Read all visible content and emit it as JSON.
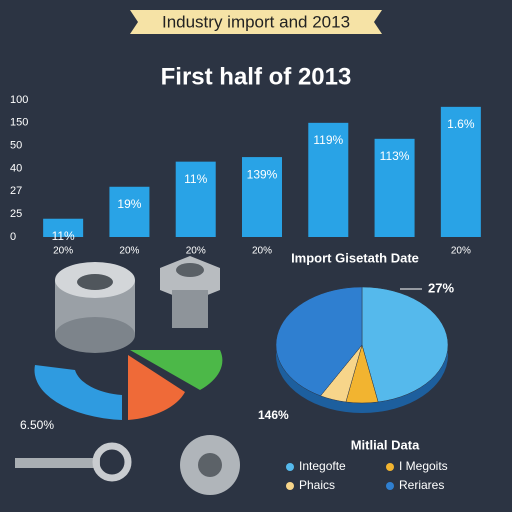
{
  "banner": "Industry import and 2013",
  "fragment_label": "6.50%",
  "chart_data": [
    {
      "type": "bar",
      "title": "First half of 2013",
      "categories": [
        "20%",
        "20%",
        "20%",
        "20%",
        null,
        null,
        "20%"
      ],
      "values": [
        0.8,
        2.2,
        3.3,
        3.5,
        5.0,
        4.3,
        5.7
      ],
      "bar_labels": [
        "11%",
        "19%",
        "11%",
        "139%",
        "119%",
        "113%",
        "1.6%"
      ],
      "color": "#29a3e6",
      "ylim": [
        0,
        6
      ],
      "yticks": [
        {
          "value": 0,
          "label": "0"
        },
        {
          "value": 1,
          "label": "25"
        },
        {
          "value": 2,
          "label": "27"
        },
        {
          "value": 3,
          "label": "40"
        },
        {
          "value": 4,
          "label": "50"
        },
        {
          "value": 5,
          "label": "150"
        },
        {
          "value": 6,
          "label": "100"
        }
      ]
    },
    {
      "type": "pie",
      "title": "Import Gisetath Date",
      "categories": [
        "Integofte",
        "I Megoits",
        "Phaics",
        "Reriares"
      ],
      "values": [
        47,
        6,
        5,
        42
      ],
      "colors": [
        "#55b9ec",
        "#f2b430",
        "#f7d58a",
        "#2f7fd0"
      ],
      "annotations": [
        "27%",
        "146%"
      ],
      "legend_title": "Mitlial Data"
    }
  ]
}
